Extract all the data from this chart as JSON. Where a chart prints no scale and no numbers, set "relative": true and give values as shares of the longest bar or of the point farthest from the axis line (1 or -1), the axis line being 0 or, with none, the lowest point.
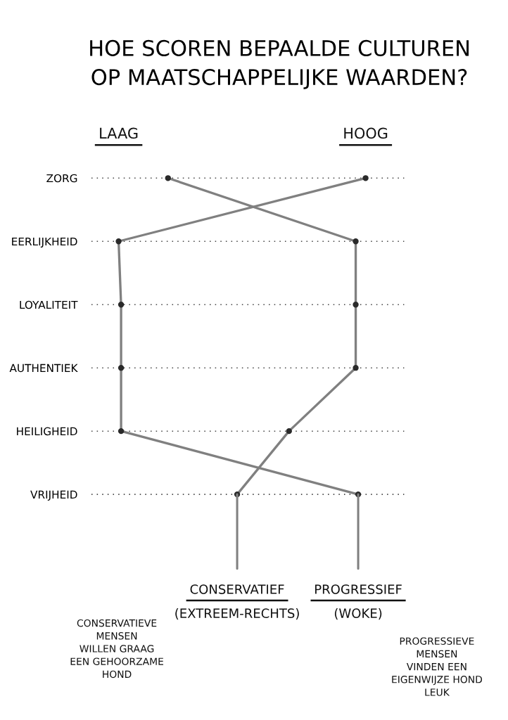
{
  "chart_data": {
    "type": "line",
    "title": "HOE SCOREN BEPAALDE CULTUREN\nOP MAATSCHAPPELIJKE WAARDEN?",
    "orientation": "horizontal",
    "relative": true,
    "categories": [
      "ZORG",
      "EERLIJKHEID",
      "LOYALITEIT",
      "AUTHENTIEK",
      "HEILIGHEID",
      "VRIJHEID"
    ],
    "series": [
      {
        "name": "CONSERVATIEF\n(EXTREEM-RECHTS)",
        "color": "#808080",
        "values": [
          0.2,
          0.96,
          0.96,
          0.96,
          0.69,
          0.48
        ]
      },
      {
        "name": "PROGRESSIEF\n(WOKE)",
        "color": "#808080",
        "values": [
          1,
          0,
          0.01,
          0.01,
          0.01,
          0.97
        ]
      }
    ],
    "annotations": [
      "LAAG",
      "HOOG",
      "CONSERVATIEVE\nMENSEN\nWILLEN GRAAG\nEEN GEHOORZAME\nHOND",
      "PROGRESSIEVE\nMENSEN\nVINDEN EEN\nEIGENWIJZE HOND\nLEUK"
    ],
    "grid": "y",
    "legend": false,
    "marker": "circle",
    "line_style": "solid"
  }
}
